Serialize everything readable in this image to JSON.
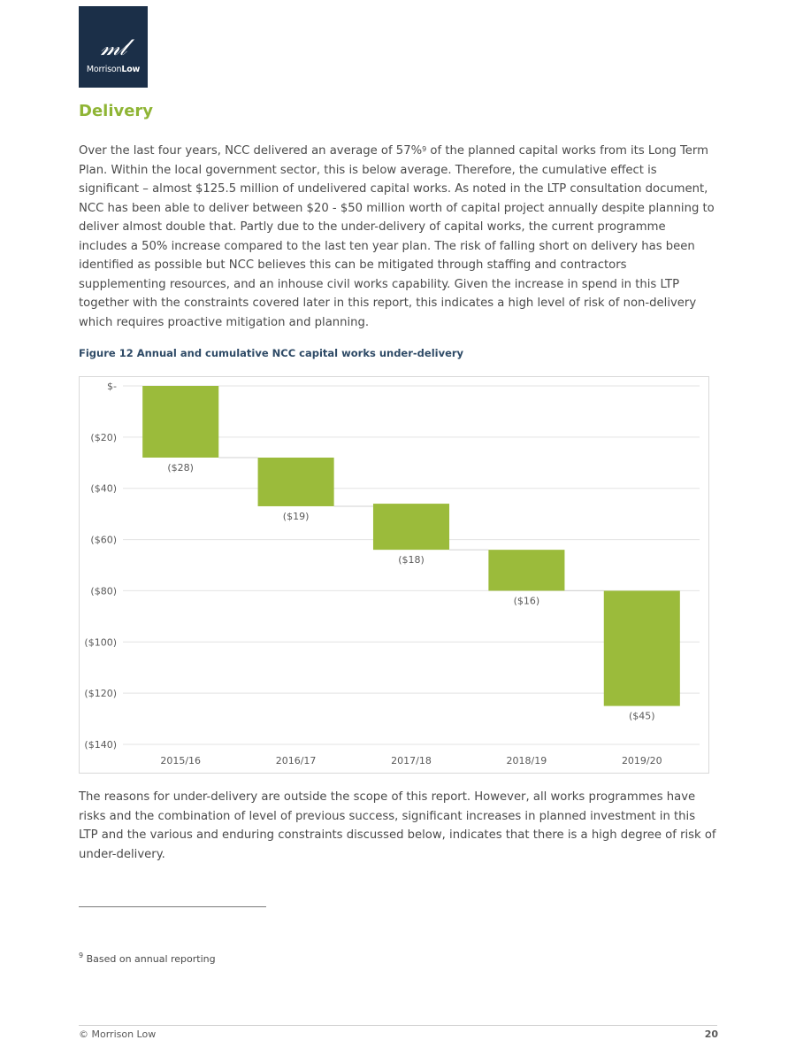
{
  "logo": {
    "mark": "𝓂𝓁",
    "word_plain": "Morrison",
    "word_bold": "Low"
  },
  "heading": "Delivery",
  "para1": {
    "before_sup": "Over the last four years, NCC delivered an average of 57%",
    "sup": "9",
    "after_sup": " of the planned capital works from its Long Term Plan.  Within the local government sector, this is below average.  Therefore, the cumulative effect is significant – almost $125.5 million of undelivered capital works. As noted in the LTP consultation document, NCC has been able to deliver between $20 - $50 million worth of capital project annually despite planning to deliver almost double that. Partly due to the under-delivery of capital works, the current programme includes a 50% increase compared to the last ten year plan. The risk of falling short on delivery has been identified as possible but NCC believes this can be mitigated through staffing and contractors supplementing resources, and an inhouse civil works capability. Given the increase in spend in this LTP together with the constraints covered later in this report, this indicates a high level of risk of non-delivery which requires proactive mitigation and planning."
  },
  "caption": "Figure 12  Annual and cumulative NCC capital works under-delivery",
  "chart_data": {
    "type": "bar",
    "subtype": "waterfall",
    "categories": [
      "2015/16",
      "2016/17",
      "2017/18",
      "2018/19",
      "2019/20"
    ],
    "values": [
      -28,
      -19,
      -18,
      -16,
      -45
    ],
    "value_labels": [
      "($28)",
      "($19)",
      "($18)",
      "($16)",
      "($45)"
    ],
    "cumulative_start": [
      0,
      -28,
      -46,
      -64,
      -80
    ],
    "yticks": [
      0,
      -20,
      -40,
      -60,
      -80,
      -100,
      -120,
      -140
    ],
    "ytick_labels": [
      "$-",
      "($20)",
      "($40)",
      "($60)",
      "($80)",
      "($100)",
      "($120)",
      "($140)"
    ],
    "ylim": [
      -140,
      0
    ],
    "grid": true,
    "legend": "none",
    "bar_color": "#9bbb3b"
  },
  "para2": "The reasons for under-delivery are outside the scope of this report. However, all works programmes have risks and the combination of level of previous success, significant increases in planned investment in this LTP and the various and enduring constraints discussed below, indicates that there is a high degree of risk of under-delivery.",
  "footnote": {
    "sup": "9",
    "text": " Based on annual reporting"
  },
  "footer": {
    "left": "© Morrison Low",
    "page": "20"
  }
}
